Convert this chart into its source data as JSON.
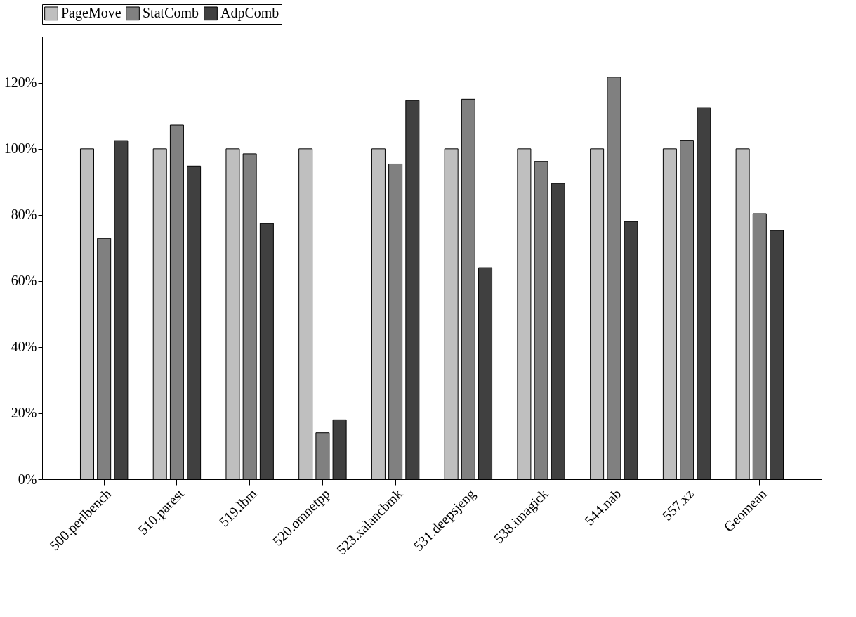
{
  "chart_data": {
    "type": "bar",
    "categories": [
      "500.perlbench",
      "510.parest",
      "519.lbm",
      "520.omnetpp",
      "523.xalancbmk",
      "531.deepsjeng",
      "538.imagick",
      "544.nab",
      "557.xz",
      "Geomean"
    ],
    "series": [
      {
        "name": "PageMove",
        "color": "#bfbfbf",
        "values": [
          100,
          100,
          100,
          100,
          100,
          100,
          100,
          100,
          100,
          100
        ]
      },
      {
        "name": "StatComb",
        "color": "#808080",
        "values": [
          72.9,
          107.2,
          98.5,
          14.1,
          95.4,
          115.0,
          96.2,
          121.7,
          102.6,
          80.4
        ]
      },
      {
        "name": "AdpComb",
        "color": "#404040",
        "values": [
          102.5,
          94.8,
          77.4,
          18.0,
          114.6,
          64.0,
          89.5,
          78.0,
          112.5,
          75.3
        ]
      }
    ],
    "ylim": [
      0,
      134
    ],
    "yticks": [
      {
        "value": 0,
        "label": "0%"
      },
      {
        "value": 20,
        "label": "20%"
      },
      {
        "value": 40,
        "label": "40%"
      },
      {
        "value": 60,
        "label": "60%"
      },
      {
        "value": 80,
        "label": "80%"
      },
      {
        "value": 100,
        "label": "100%"
      },
      {
        "value": 120,
        "label": "120%"
      }
    ],
    "legend": "top",
    "grid": false
  }
}
